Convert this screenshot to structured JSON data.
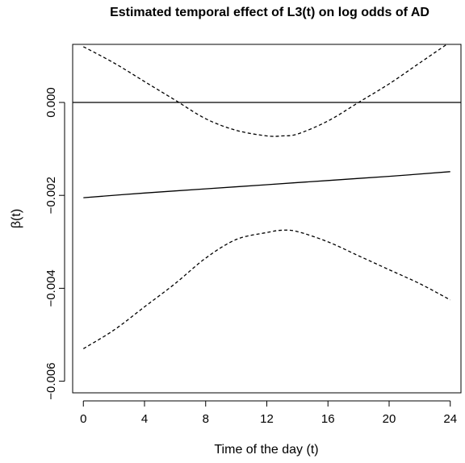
{
  "chart_data": {
    "type": "line",
    "title": "Estimated temporal effect of L3(t) on log odds of AD",
    "xlabel": "Time of the day (t)",
    "ylabel": "β(t)",
    "xlim": [
      -0.7,
      24.7
    ],
    "ylim": [
      -0.00625,
      0.00125
    ],
    "xticks": [
      0,
      4,
      8,
      12,
      16,
      20,
      24
    ],
    "yticks": [
      -0.006,
      -0.004,
      -0.002,
      0.0
    ],
    "ytick_labels": [
      "−0.006",
      "−0.004",
      "−0.002",
      "0.000"
    ],
    "xtick_labels": [
      "0",
      "4",
      "8",
      "12",
      "16",
      "20",
      "24"
    ],
    "reference_line": {
      "y": 0.0,
      "style": "solid"
    },
    "grid": false,
    "legend": "none",
    "series": [
      {
        "style": "solid",
        "x": [
          0,
          4,
          8,
          12,
          16,
          20,
          24
        ],
        "y": [
          -0.00205,
          -0.00195,
          -0.00186,
          -0.00177,
          -0.00168,
          -0.00159,
          -0.00149
        ]
      },
      {
        "style": "dashed",
        "x": [
          0,
          2,
          4,
          6,
          8,
          10,
          12,
          13,
          14,
          16,
          18,
          20,
          22,
          24
        ],
        "y": [
          0.0012,
          0.00085,
          0.00045,
          5e-05,
          -0.00035,
          -0.0006,
          -0.00072,
          -0.00072,
          -0.00068,
          -0.0004,
          0.0,
          0.0004,
          0.00085,
          0.0013
        ]
      },
      {
        "style": "dashed",
        "x": [
          0,
          2,
          4,
          6,
          8,
          10,
          12,
          13,
          14,
          16,
          18,
          20,
          22,
          24
        ],
        "y": [
          -0.0053,
          -0.0049,
          -0.0044,
          -0.0039,
          -0.00335,
          -0.00295,
          -0.0028,
          -0.00275,
          -0.00278,
          -0.003,
          -0.0033,
          -0.0036,
          -0.0039,
          -0.00425
        ]
      }
    ]
  }
}
